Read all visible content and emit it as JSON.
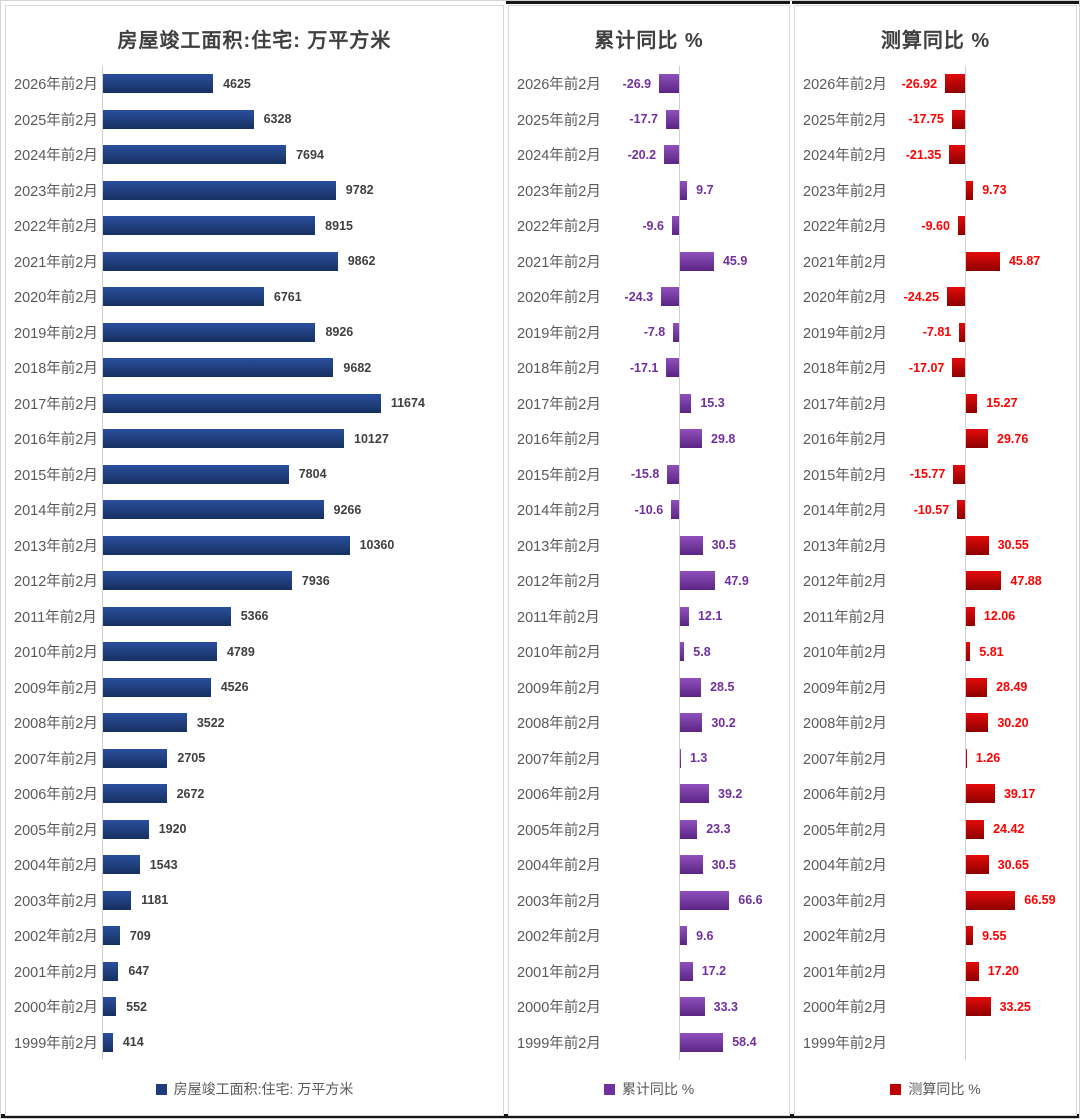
{
  "page": {
    "panels": [
      {
        "title": "房屋竣工面积:住宅: 万平方米",
        "legend_label": "房屋竣工面积:住宅: 万平方米",
        "bar_color": "#1e3b7d",
        "bar_color_top": "#2a4f9e",
        "bar_color_bottom": "#16305f",
        "value_color": "#3f3f3f"
      },
      {
        "title": "累计同比 %",
        "legend_label": "累计同比 %",
        "bar_color": "#7030a0",
        "bar_color_top": "#8f50bd",
        "bar_color_bottom": "#5b2583",
        "value_color": "#7030a0"
      },
      {
        "title": "测算同比 %",
        "legend_label": "测算同比 %",
        "bar_color": "#c00000",
        "bar_color_top": "#e30b0b",
        "bar_color_bottom": "#8e0000",
        "value_color": "#ff0000"
      }
    ],
    "category_color": "#595959",
    "axis_line_color": "#cfcfcf"
  },
  "chart_data": [
    {
      "type": "bar",
      "orientation": "horizontal",
      "title": "房屋竣工面积:住宅: 万平方米",
      "legend": [
        "房屋竣工面积:住宅: 万平方米"
      ],
      "legend_position": "bottom",
      "grid": false,
      "xlim": [
        0,
        16800
      ],
      "categories": [
        "2026年前2月",
        "2025年前2月",
        "2024年前2月",
        "2023年前2月",
        "2022年前2月",
        "2021年前2月",
        "2020年前2月",
        "2019年前2月",
        "2018年前2月",
        "2017年前2月",
        "2016年前2月",
        "2015年前2月",
        "2014年前2月",
        "2013年前2月",
        "2012年前2月",
        "2011年前2月",
        "2010年前2月",
        "2009年前2月",
        "2008年前2月",
        "2007年前2月",
        "2006年前2月",
        "2005年前2月",
        "2004年前2月",
        "2003年前2月",
        "2002年前2月",
        "2001年前2月",
        "2000年前2月",
        "1999年前2月"
      ],
      "values": [
        4625,
        6328,
        7694,
        9782,
        8915,
        9862,
        6761,
        8926,
        9682,
        11674,
        10127,
        7804,
        9266,
        10360,
        7936,
        5366,
        4789,
        4526,
        3522,
        2705,
        2672,
        1920,
        1543,
        1181,
        709,
        647,
        552,
        414
      ]
    },
    {
      "type": "bar",
      "orientation": "horizontal",
      "title": "累计同比 %",
      "legend": [
        "累计同比 %"
      ],
      "legend_position": "bottom",
      "grid": false,
      "xlim": [
        -30,
        70
      ],
      "categories": [
        "2026年前2月",
        "2025年前2月",
        "2024年前2月",
        "2023年前2月",
        "2022年前2月",
        "2021年前2月",
        "2020年前2月",
        "2019年前2月",
        "2018年前2月",
        "2017年前2月",
        "2016年前2月",
        "2015年前2月",
        "2014年前2月",
        "2013年前2月",
        "2012年前2月",
        "2011年前2月",
        "2010年前2月",
        "2009年前2月",
        "2008年前2月",
        "2007年前2月",
        "2006年前2月",
        "2005年前2月",
        "2004年前2月",
        "2003年前2月",
        "2002年前2月",
        "2001年前2月",
        "2000年前2月",
        "1999年前2月"
      ],
      "values": [
        -26.9,
        -17.7,
        -20.2,
        9.7,
        -9.6,
        45.9,
        -24.3,
        -7.8,
        -17.1,
        15.3,
        29.8,
        -15.8,
        -10.6,
        30.5,
        47.9,
        12.1,
        5.8,
        28.5,
        30.2,
        1.3,
        39.2,
        23.3,
        30.5,
        66.6,
        9.6,
        17.2,
        33.3,
        58.4
      ],
      "value_labels": [
        "-26.9",
        "-17.7",
        "-20.2",
        "9.7",
        "-9.6",
        "45.9",
        "-24.3",
        "-7.8",
        "-17.1",
        "15.3",
        "29.8",
        "-15.8",
        "-10.6",
        "30.5",
        "47.9",
        "12.1",
        "5.8",
        "28.5",
        "30.2",
        "1.3",
        "39.2",
        "23.3",
        "30.5",
        "66.6",
        "9.6",
        "17.2",
        "33.3",
        "58.4"
      ]
    },
    {
      "type": "bar",
      "orientation": "horizontal",
      "title": "测算同比 %",
      "legend": [
        "测算同比 %"
      ],
      "legend_position": "bottom",
      "grid": false,
      "xlim": [
        -30,
        70
      ],
      "categories": [
        "2026年前2月",
        "2025年前2月",
        "2024年前2月",
        "2023年前2月",
        "2022年前2月",
        "2021年前2月",
        "2020年前2月",
        "2019年前2月",
        "2018年前2月",
        "2017年前2月",
        "2016年前2月",
        "2015年前2月",
        "2014年前2月",
        "2013年前2月",
        "2012年前2月",
        "2011年前2月",
        "2010年前2月",
        "2009年前2月",
        "2008年前2月",
        "2007年前2月",
        "2006年前2月",
        "2005年前2月",
        "2004年前2月",
        "2003年前2月",
        "2002年前2月",
        "2001年前2月",
        "2000年前2月",
        "1999年前2月"
      ],
      "values": [
        -26.92,
        -17.75,
        -21.35,
        9.73,
        -9.6,
        45.87,
        -24.25,
        -7.81,
        -17.07,
        15.27,
        29.76,
        -15.77,
        -10.57,
        30.55,
        47.88,
        12.06,
        5.81,
        28.49,
        30.2,
        1.26,
        39.17,
        24.42,
        30.65,
        66.59,
        9.55,
        17.2,
        33.25,
        null
      ],
      "value_labels": [
        "-26.92",
        "-17.75",
        "-21.35",
        "9.73",
        "-9.60",
        "45.87",
        "-24.25",
        "-7.81",
        "-17.07",
        "15.27",
        "29.76",
        "-15.77",
        "-10.57",
        "30.55",
        "47.88",
        "12.06",
        "5.81",
        "28.49",
        "30.20",
        "1.26",
        "39.17",
        "24.42",
        "30.65",
        "66.59",
        "9.55",
        "17.20",
        "33.25",
        ""
      ]
    }
  ]
}
